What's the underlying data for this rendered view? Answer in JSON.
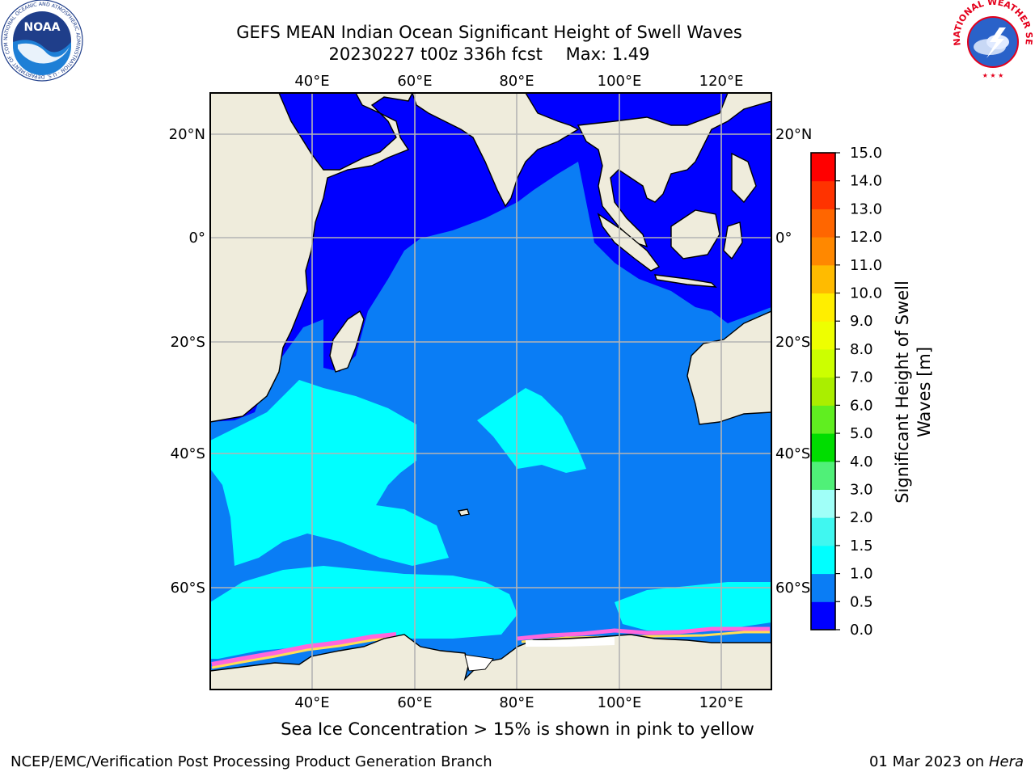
{
  "title": {
    "line1": "GEFS MEAN Indian Ocean Significant Height of Swell Waves",
    "run": "20230227 t00z 336h fcst",
    "max": "Max: 1.49"
  },
  "caption": "Sea Ice Concentration > 15% is shown in pink to yellow",
  "footer": {
    "left": "NCEP/EMC/Verification Post Processing Product Generation Branch",
    "date": "01 Mar 2023 on",
    "machine": "Hera"
  },
  "logos": {
    "noaa_text": "NOAA",
    "noaa_ring": "NATIONAL OCEANIC AND ATMOSPHERIC ADMINISTRATION · U.S. DEPARTMENT OF COMMERCE ·",
    "nws_ring": "NATIONAL WEATHER SERVICE"
  },
  "map": {
    "lon_labels": [
      "40°E",
      "60°E",
      "80°E",
      "100°E",
      "120°E"
    ],
    "lat_labels": [
      "20°N",
      "0°",
      "20°S",
      "40°S",
      "60°S"
    ]
  },
  "colorbar": {
    "label_line1": "Significant Height of Swell",
    "label_line2": "Waves [m]",
    "ticks": [
      "0.0",
      "0.5",
      "1.0",
      "1.5",
      "2.0",
      "3.0",
      "4.0",
      "5.0",
      "6.0",
      "7.0",
      "8.0",
      "9.0",
      "10.0",
      "11.0",
      "12.0",
      "13.0",
      "14.0",
      "15.0"
    ],
    "colors": [
      "#0000ff",
      "#0a7df5",
      "#00ffff",
      "#40f7f0",
      "#a0fff8",
      "#50f078",
      "#00dd00",
      "#60ee20",
      "#aaee00",
      "#ccff00",
      "#eeff00",
      "#ffee00",
      "#ffbb00",
      "#ff8800",
      "#ff6600",
      "#ff3300",
      "#ff0000"
    ]
  },
  "colors": {
    "land": "#efecdc",
    "deep_blue": "#0000ff",
    "mid_blue": "#0a7df5",
    "cyan": "#00ffff",
    "grid": "#b4b4b4"
  }
}
